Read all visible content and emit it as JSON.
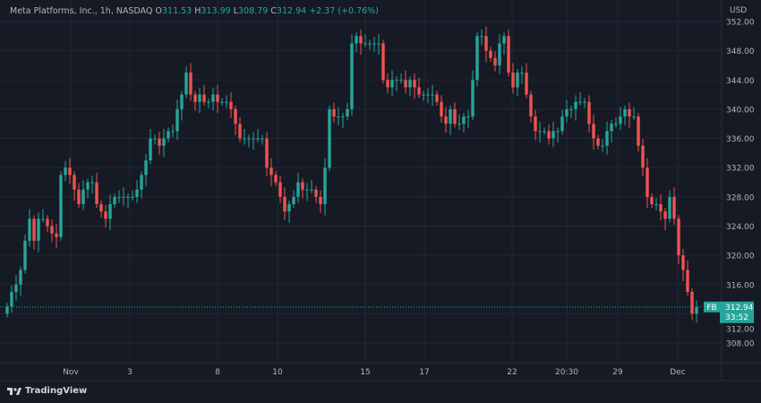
{
  "header": {
    "symbol_title": "Meta Platforms, Inc., 1h, NASDAQ",
    "o_label": "O",
    "o": "311.53",
    "h_label": "H",
    "h": "313.99",
    "l_label": "L",
    "l": "308.79",
    "c_label": "C",
    "c": "312.94",
    "change": "+2.37 (+0.76%)"
  },
  "footer": {
    "brand": "TradingView"
  },
  "colors": {
    "background": "#161a25",
    "up": "#26a69a",
    "down": "#ef5350",
    "grid": "#232632"
  },
  "chart_data": {
    "type": "candlestick",
    "symbol": "FB",
    "currency": "USD",
    "last_price": "312.94",
    "countdown": "33:52",
    "ylim": [
      306,
      354
    ],
    "yticks": [
      "352.00",
      "348.00",
      "344.00",
      "340.00",
      "336.00",
      "332.00",
      "328.00",
      "324.00",
      "320.00",
      "316.00",
      "312.00",
      "308.00"
    ],
    "xticks": [
      "Nov",
      "3",
      "8",
      "10",
      "15",
      "17",
      "22",
      "20:30",
      "29",
      "Dec"
    ],
    "grid": true,
    "first_open": 312,
    "closes": [
      313,
      315,
      316,
      318,
      322,
      325,
      322,
      325,
      325,
      324,
      323,
      322.5,
      331,
      332,
      331,
      329,
      327,
      329,
      330,
      330,
      327,
      326,
      325,
      327,
      328,
      328,
      328,
      328,
      328,
      329,
      331,
      333,
      336,
      336,
      335,
      336,
      337,
      337,
      340,
      342,
      345,
      342,
      341,
      342,
      341,
      341,
      342,
      341,
      341,
      341,
      340,
      338,
      336,
      336,
      336,
      336,
      336,
      336,
      332,
      331,
      330,
      328,
      326,
      327,
      328,
      330,
      329,
      329,
      329,
      328,
      327,
      332,
      340,
      339,
      339,
      339,
      340,
      349,
      350,
      349,
      349,
      349,
      349,
      349,
      344,
      343,
      344,
      344,
      344,
      343,
      344,
      343,
      342,
      342,
      342,
      342,
      341,
      339,
      338,
      340,
      338,
      338,
      339,
      339,
      344,
      350,
      350,
      348,
      347,
      346,
      349,
      350,
      345,
      343,
      345,
      345,
      342,
      339,
      337,
      337,
      337,
      336,
      337,
      337,
      339,
      340,
      340,
      341,
      341,
      341,
      338,
      336,
      335,
      335,
      337,
      338,
      338,
      339,
      340,
      339,
      339,
      335,
      332,
      328,
      327,
      327,
      326,
      325,
      328,
      325,
      320,
      318,
      315,
      312,
      312.94
    ]
  }
}
